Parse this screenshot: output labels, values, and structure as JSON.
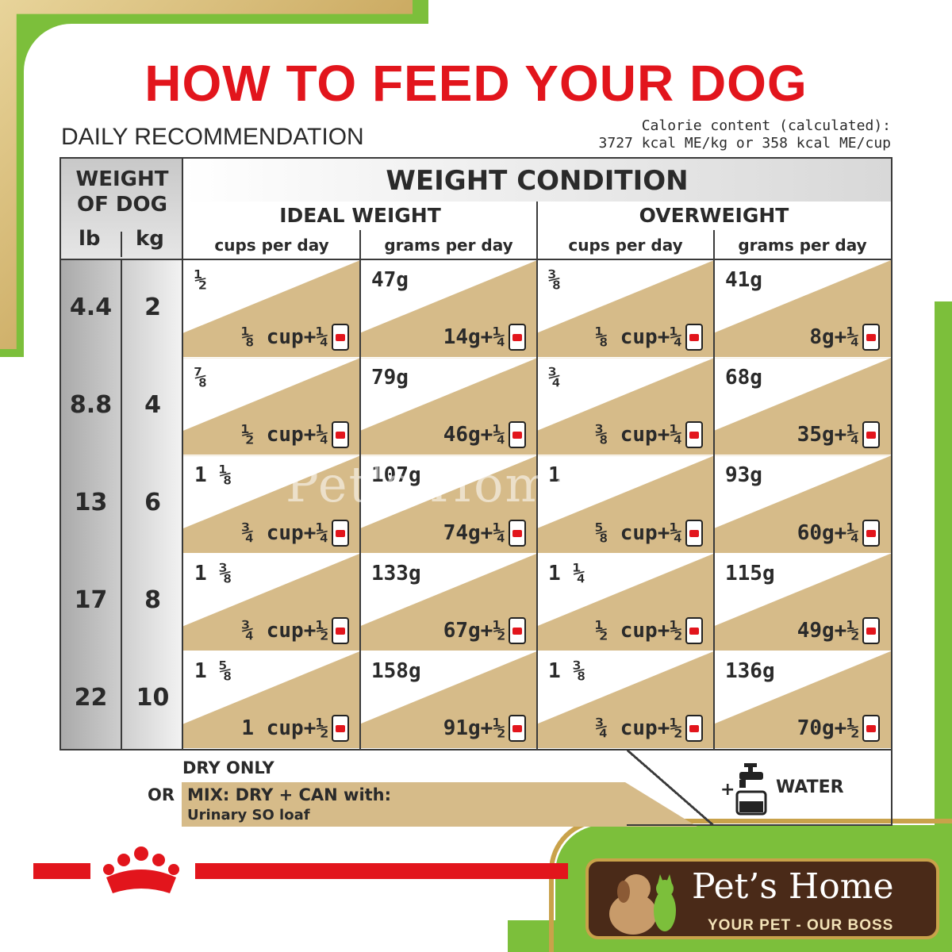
{
  "title": "HOW TO FEED YOUR DOG",
  "subtitle": "DAILY RECOMMENDATION",
  "calorie": {
    "line1": "Calorie content (calculated):",
    "line2": "3727 kcal ME/kg or 358 kcal ME/cup"
  },
  "table": {
    "weight_header": "WEIGHT OF DOG",
    "lb_label": "lb",
    "kg_label": "kg",
    "condition_header": "WEIGHT CONDITION",
    "groups": [
      "IDEAL WEIGHT",
      "OVERWEIGHT"
    ],
    "columns": [
      "cups per day",
      "grams per day",
      "cups per day",
      "grams per day"
    ],
    "rows": [
      {
        "lb": "4.4",
        "kg": "2",
        "cells": [
          {
            "dry": "½",
            "mix": "⅛ cup+¼"
          },
          {
            "dry": "47g",
            "mix": "14g+¼"
          },
          {
            "dry": "⅜",
            "mix": "⅛ cup+¼"
          },
          {
            "dry": "41g",
            "mix": "8g+¼"
          }
        ]
      },
      {
        "lb": "8.8",
        "kg": "4",
        "cells": [
          {
            "dry": "⅞",
            "mix": "½ cup+¼"
          },
          {
            "dry": "79g",
            "mix": "46g+¼"
          },
          {
            "dry": "¾",
            "mix": "⅜ cup+¼"
          },
          {
            "dry": "68g",
            "mix": "35g+¼"
          }
        ]
      },
      {
        "lb": "13",
        "kg": "6",
        "cells": [
          {
            "dry": "1 ⅛",
            "mix": "¾ cup+¼"
          },
          {
            "dry": "107g",
            "mix": "74g+¼"
          },
          {
            "dry": "1",
            "mix": "⅝ cup+¼"
          },
          {
            "dry": "93g",
            "mix": "60g+¼"
          }
        ]
      },
      {
        "lb": "17",
        "kg": "8",
        "cells": [
          {
            "dry": "1 ⅜",
            "mix": "¾ cup+½"
          },
          {
            "dry": "133g",
            "mix": "67g+½"
          },
          {
            "dry": "1 ¼",
            "mix": "½ cup+½"
          },
          {
            "dry": "115g",
            "mix": "49g+½"
          }
        ]
      },
      {
        "lb": "22",
        "kg": "10",
        "cells": [
          {
            "dry": "1 ⅝",
            "mix": "1 cup+½"
          },
          {
            "dry": "158g",
            "mix": "91g+½"
          },
          {
            "dry": "1 ⅜",
            "mix": "¾ cup+½"
          },
          {
            "dry": "136g",
            "mix": "70g+½"
          }
        ]
      }
    ]
  },
  "legend": {
    "dry_only": "DRY ONLY",
    "or": "OR",
    "mix_line1": "MIX: DRY + CAN with:",
    "mix_line2": "Urinary SO loaf",
    "plus": "+",
    "water": "WATER",
    "icons": [
      "can-icon",
      "water-tap-icon"
    ]
  },
  "watermark": "Pet's Home",
  "logo": {
    "name": "Pet’s Home",
    "tagline": "YOUR PET - OUR BOSS"
  },
  "colors": {
    "title_red": "#e2151c",
    "tan": "#d6bb89",
    "frame_green": "#7cbf3b",
    "frame_gold": "#c9a24a",
    "logo_brown": "#4a2a18"
  }
}
